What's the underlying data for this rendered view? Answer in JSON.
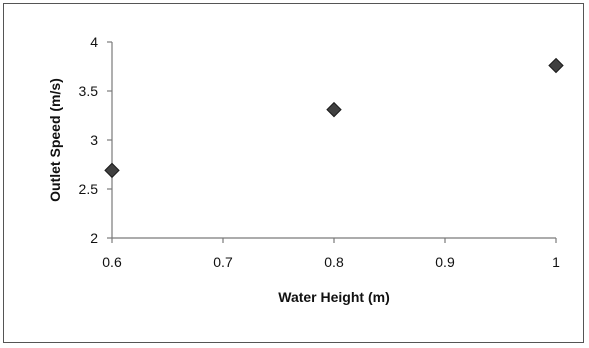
{
  "chart_data": {
    "type": "scatter",
    "title": "",
    "xlabel": "Water Height (m)",
    "ylabel": "Outlet Speed (m/s)",
    "xlim": [
      0.6,
      1.0
    ],
    "ylim": [
      2,
      4
    ],
    "x_ticks": [
      "0.6",
      "0.7",
      "0.8",
      "0.9",
      "1"
    ],
    "y_ticks": [
      "2",
      "2.5",
      "3",
      "3.5",
      "4"
    ],
    "x_tick_values": [
      0.6,
      0.7,
      0.8,
      0.9,
      1.0
    ],
    "y_tick_values": [
      2,
      2.5,
      3,
      3.5,
      4
    ],
    "series": [
      {
        "x": [
          0.6,
          0.8,
          1.0
        ],
        "y": [
          2.69,
          3.31,
          3.76
        ],
        "marker": "diamond",
        "color": "#404040"
      }
    ],
    "grid": false,
    "legend": "none"
  }
}
